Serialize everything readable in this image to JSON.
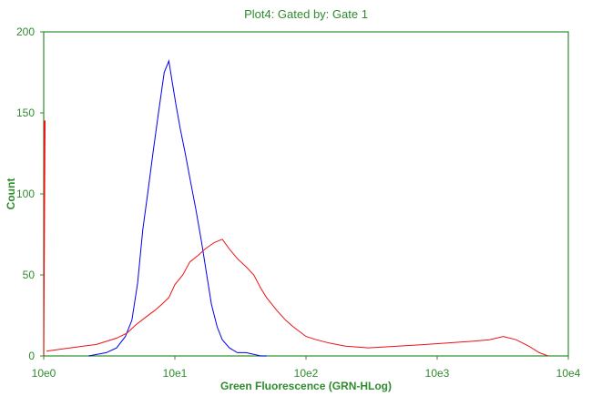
{
  "chart_data": {
    "type": "line",
    "title": "Plot4:  Gated by: Gate 1",
    "xlabel": "Green Fluorescence (GRN-HLog)",
    "ylabel": "Count",
    "x_scale": "log",
    "xlim": [
      1,
      10000
    ],
    "ylim": [
      0,
      200
    ],
    "x_ticks": [
      1,
      10,
      100,
      1000,
      10000
    ],
    "x_tick_labels": [
      "10e0",
      "10e1",
      "10e2",
      "10e3",
      "10e4"
    ],
    "y_ticks": [
      0,
      50,
      100,
      150,
      200
    ],
    "y_tick_labels": [
      "0",
      "50",
      "100",
      "150",
      "200"
    ],
    "grid": false,
    "colors": {
      "frame": "#2e8b2e",
      "text": "#2e8b2e",
      "blue": "#0000ee",
      "red": "#ee1111"
    },
    "series": [
      {
        "color": "#0000ee",
        "x": [
          2.2,
          3.0,
          3.6,
          4.2,
          4.7,
          5.2,
          5.7,
          6.2,
          6.8,
          7.5,
          8.3,
          9.0,
          9.6,
          10.2,
          11.0,
          12.0,
          13.0,
          14.5,
          16.0,
          17.5,
          19.0,
          21.0,
          23.0,
          26.0,
          30.0,
          35.0,
          40.0,
          45.0,
          50.0
        ],
        "y": [
          0,
          2,
          5,
          12,
          22,
          45,
          78,
          100,
          125,
          150,
          175,
          182,
          168,
          155,
          140,
          125,
          110,
          90,
          70,
          50,
          32,
          18,
          10,
          5,
          2,
          2,
          1,
          0,
          0
        ]
      },
      {
        "color": "#ee1111",
        "x": [
          1.05,
          1.3,
          1.6,
          2.0,
          2.5,
          3.0,
          3.6,
          4.3,
          5.0,
          6.0,
          7.0,
          8.0,
          9.0,
          10.0,
          11.5,
          13.0,
          15.0,
          17.0,
          20.0,
          23.0,
          26.0,
          30.0,
          35.0,
          40.0,
          45.0,
          50.0,
          60.0,
          70.0,
          80.0,
          100.0,
          120.0,
          150.0,
          200.0,
          300.0,
          500.0,
          800.0,
          1200.0,
          1800.0,
          2500.0,
          3200.0,
          4000.0,
          5000.0,
          6000.0,
          7000.0
        ],
        "y": [
          3,
          4,
          5,
          6,
          7,
          9,
          11,
          14,
          19,
          24,
          28,
          32,
          36,
          44,
          50,
          58,
          62,
          66,
          70,
          72,
          66,
          60,
          55,
          50,
          42,
          36,
          28,
          22,
          18,
          12,
          10,
          8,
          6,
          5,
          6,
          7,
          8,
          9,
          10,
          12,
          10,
          6,
          2,
          0
        ]
      },
      {
        "color": "#ee1111",
        "x": [
          1.0,
          1.0,
          1.0,
          1.0
        ],
        "y": [
          0,
          145,
          145,
          0
        ]
      }
    ]
  }
}
